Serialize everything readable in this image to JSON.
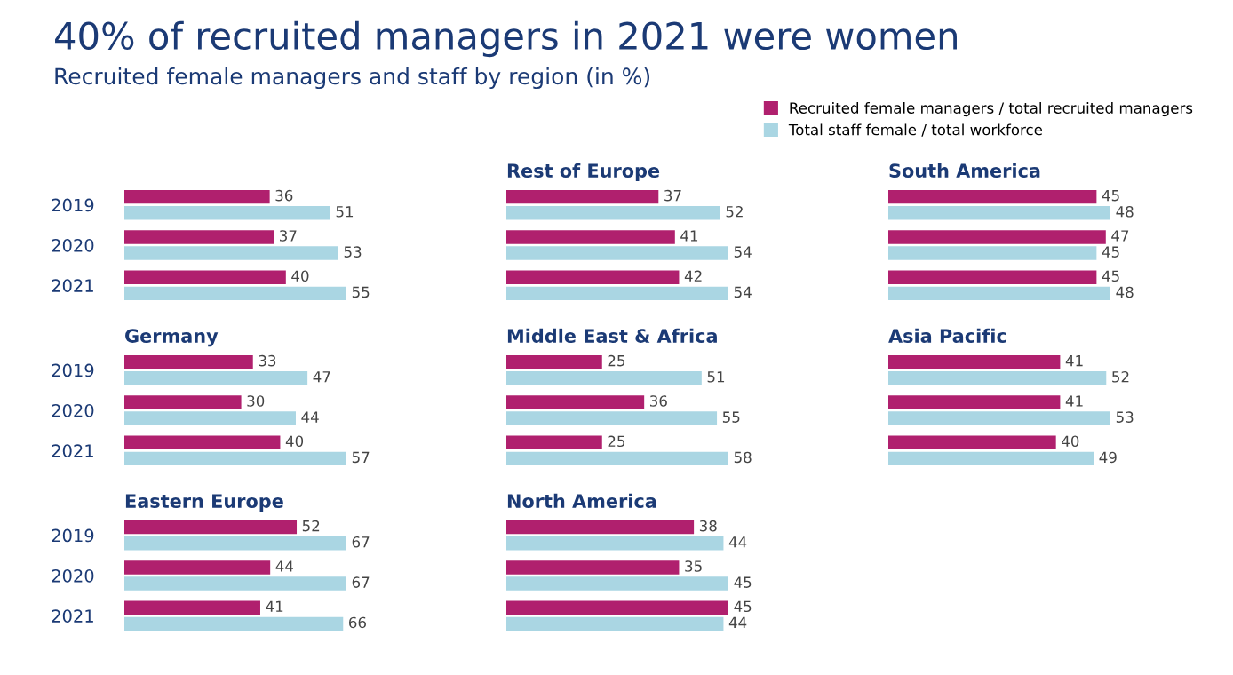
{
  "chart_data": [
    {
      "type": "other",
      "title": "40% of recruited managers in 2021 were women",
      "subtitle": "Recruited female managers and staff by region (in %)"
    },
    {
      "type": "bar",
      "orientation": "horizontal",
      "categories": [
        "2019",
        "2020",
        "2021"
      ],
      "data_labels": true,
      "tick_labels": "y",
      "legend": "top right",
      "series": [
        {
          "name": "Recruited female managers / total recruited managers",
          "color": "#b0206e",
          "values": [
            36,
            37,
            40
          ]
        },
        {
          "name": "Total staff female / total workforce",
          "color": "#aad6e3",
          "values": [
            51,
            53,
            55
          ]
        }
      ]
    },
    {
      "type": "bar",
      "orientation": "horizontal",
      "title": "Germany",
      "categories": [
        "2019",
        "2020",
        "2021"
      ],
      "data_labels": true,
      "tick_labels": "y",
      "series": [
        {
          "color": "#b0206e",
          "values": [
            33,
            30,
            40
          ]
        },
        {
          "color": "#aad6e3",
          "values": [
            47,
            44,
            57
          ]
        }
      ]
    },
    {
      "type": "bar",
      "orientation": "horizontal",
      "title": "Eastern Europe",
      "categories": [
        "2019",
        "2020",
        "2021"
      ],
      "data_labels": true,
      "tick_labels": "y",
      "series": [
        {
          "color": "#b0206e",
          "values": [
            52,
            44,
            41
          ]
        },
        {
          "color": "#aad6e3",
          "values": [
            67,
            67,
            66
          ]
        }
      ]
    },
    {
      "type": "bar",
      "orientation": "horizontal",
      "title": "Rest of Europe",
      "categories": [
        null,
        null,
        null
      ],
      "data_labels": true,
      "tick_labels": false,
      "series": [
        {
          "color": "#b0206e",
          "values": [
            37,
            41,
            42
          ]
        },
        {
          "color": "#aad6e3",
          "values": [
            52,
            54,
            54
          ]
        }
      ]
    },
    {
      "type": "bar",
      "orientation": "horizontal",
      "title": "Middle East & Africa",
      "categories": [
        null,
        null,
        null
      ],
      "data_labels": true,
      "tick_labels": false,
      "series": [
        {
          "color": "#b0206e",
          "values": [
            25,
            36,
            25
          ]
        },
        {
          "color": "#aad6e3",
          "values": [
            51,
            55,
            58
          ]
        }
      ]
    },
    {
      "type": "bar",
      "orientation": "horizontal",
      "title": "North America",
      "categories": [
        null,
        null,
        null
      ],
      "data_labels": true,
      "tick_labels": false,
      "series": [
        {
          "color": "#b0206e",
          "values": [
            38,
            35,
            45
          ]
        },
        {
          "color": "#aad6e3",
          "values": [
            44,
            45,
            44
          ]
        }
      ]
    },
    {
      "type": "bar",
      "orientation": "horizontal",
      "title": "South America",
      "categories": [
        null,
        null,
        null
      ],
      "data_labels": true,
      "tick_labels": false,
      "series": [
        {
          "color": "#b0206e",
          "values": [
            45,
            47,
            45
          ]
        },
        {
          "color": "#aad6e3",
          "values": [
            48,
            45,
            48
          ]
        }
      ]
    },
    {
      "type": "bar",
      "orientation": "horizontal",
      "title": "Asia Pacific",
      "categories": [
        null,
        null,
        null
      ],
      "data_labels": true,
      "tick_labels": false,
      "series": [
        {
          "color": "#b0206e",
          "values": [
            41,
            41,
            40
          ]
        },
        {
          "color": "#aad6e3",
          "values": [
            52,
            53,
            49
          ]
        }
      ]
    }
  ]
}
